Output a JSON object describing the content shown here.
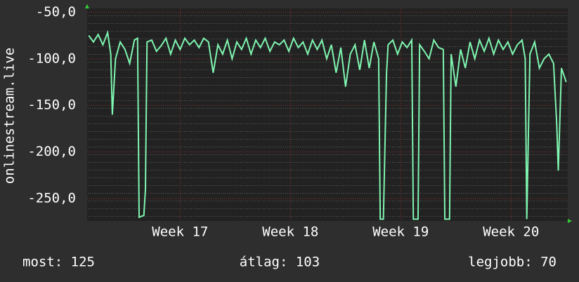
{
  "chart_data": {
    "type": "line",
    "ylabel": "onlinestream.live",
    "x": [
      -5.8,
      -5.5,
      -5.2,
      -4.9,
      -4.6,
      -4.4,
      -4.3,
      -4.1,
      -3.8,
      -3.5,
      -3.2,
      -2.9,
      -2.7,
      -2.6,
      -2.3,
      -2.2,
      -2.1,
      -1.8,
      -1.5,
      -1.2,
      -0.9,
      -0.6,
      -0.3,
      0,
      0.3,
      0.6,
      0.9,
      1.2,
      1.5,
      1.8,
      2.1,
      2.4,
      2.7,
      3.0,
      3.3,
      3.6,
      3.9,
      4.2,
      4.5,
      4.8,
      5.1,
      5.4,
      5.7,
      6.0,
      6.3,
      6.6,
      6.9,
      7.2,
      7.5,
      7.8,
      8.1,
      8.4,
      8.7,
      9.0,
      9.3,
      9.6,
      9.9,
      10.2,
      10.5,
      10.8,
      11.1,
      11.4,
      11.7,
      12.0,
      12.3,
      12.6,
      12.7,
      12.9,
      13.1,
      13.2,
      13.5,
      13.8,
      14.1,
      14.4,
      14.7,
      14.8,
      15.1,
      15.2,
      15.5,
      15.8,
      16.1,
      16.4,
      16.7,
      16.8,
      17.1,
      17.2,
      17.5,
      17.8,
      18.1,
      18.4,
      18.7,
      19.0,
      19.3,
      19.6,
      19.9,
      20.2,
      20.5,
      20.8,
      21.1,
      21.4,
      21.7,
      21.9,
      22.0,
      22.2,
      22.5,
      22.8,
      23.1,
      23.4,
      23.7,
      23.9,
      24.0,
      24.2,
      24.5
    ],
    "series": [
      {
        "color": "#7ff5b0",
        "values": [
          -75,
          -82,
          -74,
          -85,
          -72,
          -95,
          -160,
          -100,
          -82,
          -90,
          -105,
          -80,
          -78,
          -270,
          -268,
          -240,
          -82,
          -80,
          -92,
          -86,
          -78,
          -95,
          -80,
          -90,
          -78,
          -85,
          -80,
          -88,
          -78,
          -82,
          -115,
          -85,
          -95,
          -80,
          -100,
          -82,
          -90,
          -78,
          -95,
          -80,
          -88,
          -78,
          -92,
          -82,
          -85,
          -80,
          -92,
          -78,
          -88,
          -82,
          -95,
          -80,
          -90,
          -80,
          -100,
          -85,
          -115,
          -88,
          -130,
          -95,
          -85,
          -112,
          -80,
          -110,
          -82,
          -100,
          -272,
          -272,
          -115,
          -85,
          -80,
          -95,
          -82,
          -88,
          -80,
          -272,
          -272,
          -85,
          -92,
          -100,
          -80,
          -88,
          -90,
          -272,
          -272,
          -95,
          -130,
          -90,
          -110,
          -82,
          -100,
          -80,
          -92,
          -78,
          -95,
          -80,
          -90,
          -82,
          -95,
          -85,
          -80,
          -100,
          -272,
          -95,
          -82,
          -110,
          -100,
          -95,
          -105,
          -170,
          -220,
          -110,
          -125
        ]
      }
    ],
    "xlim": [
      -5.9,
      24.6
    ],
    "xticks": [
      {
        "value": 0,
        "label": "Week 17"
      },
      {
        "value": 7,
        "label": "Week 18"
      },
      {
        "value": 14,
        "label": "Week 19"
      },
      {
        "value": 21,
        "label": "Week 20"
      }
    ],
    "ylim": [
      -274,
      -46
    ],
    "yticks": [
      {
        "value": -50,
        "label": "-50,0"
      },
      {
        "value": -100,
        "label": "-100,0"
      },
      {
        "value": -150,
        "label": "-150,0"
      },
      {
        "value": -200,
        "label": "-200,0"
      },
      {
        "value": -250,
        "label": "-250,0"
      }
    ],
    "grid": true,
    "footer": [
      "most: 125",
      "átlag: 103",
      "legjobb: 70"
    ]
  }
}
